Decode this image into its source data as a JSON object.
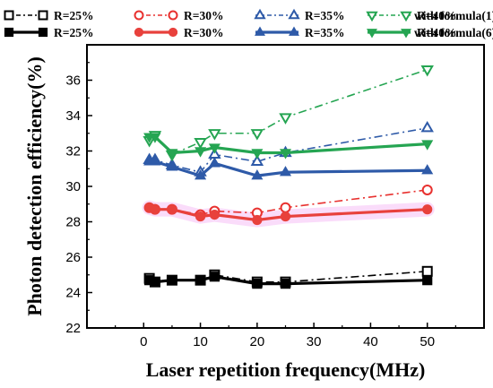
{
  "chart_data": {
    "type": "line",
    "xlabel": "Laser repetition frequency(MHz)",
    "ylabel": "Photon detection efficiency(%)",
    "xlim": [
      -10,
      60
    ],
    "ylim": [
      22,
      38
    ],
    "xticks": [
      0,
      10,
      20,
      30,
      40,
      50
    ],
    "yticks": [
      22,
      24,
      26,
      28,
      30,
      32,
      34,
      36
    ],
    "legend_position": "top",
    "x": [
      1,
      2,
      5,
      10,
      12.5,
      20,
      25,
      50
    ],
    "series": [
      {
        "name": "R=25%",
        "group": "with formula(1)",
        "marker": "square",
        "filled": false,
        "dash": "dashdot",
        "color": "#000000",
        "values": [
          24.8,
          24.6,
          24.7,
          24.7,
          25.0,
          24.6,
          24.6,
          25.2
        ]
      },
      {
        "name": "R=30%",
        "group": "with formula(1)",
        "marker": "circle",
        "filled": false,
        "dash": "dashdot",
        "color": "#e8312f",
        "values": [
          28.8,
          28.7,
          28.7,
          28.4,
          28.6,
          28.5,
          28.8,
          29.8
        ]
      },
      {
        "name": "R=35%",
        "group": "with formula(1)",
        "marker": "triangle-up",
        "filled": false,
        "dash": "dashdot",
        "color": "#2e5aa8",
        "values": [
          31.5,
          31.5,
          31.2,
          30.8,
          31.8,
          31.4,
          31.9,
          33.3
        ]
      },
      {
        "name": "R=40%",
        "group": "with formula(1)",
        "marker": "triangle-down",
        "filled": false,
        "dash": "dashdot",
        "color": "#25a552",
        "values": [
          32.6,
          32.9,
          31.8,
          32.5,
          33.0,
          33.0,
          33.9,
          36.6
        ]
      },
      {
        "name": "R=25%",
        "group": "with formula(6)",
        "marker": "square",
        "filled": true,
        "dash": "solid",
        "color": "#000000",
        "values": [
          24.7,
          24.6,
          24.7,
          24.7,
          24.9,
          24.5,
          24.5,
          24.7
        ]
      },
      {
        "name": "R=30%",
        "group": "with formula(6)",
        "marker": "circle",
        "filled": true,
        "dash": "solid",
        "color": "#e8413c",
        "values": [
          28.8,
          28.7,
          28.7,
          28.3,
          28.4,
          28.1,
          28.3,
          28.7
        ]
      },
      {
        "name": "R=35%",
        "group": "with formula(6)",
        "marker": "triangle-up",
        "filled": true,
        "dash": "solid",
        "color": "#2e5aa8",
        "values": [
          31.4,
          31.4,
          31.1,
          30.6,
          31.3,
          30.6,
          30.8,
          30.9
        ]
      },
      {
        "name": "R=40%",
        "group": "with formula(6)",
        "marker": "triangle-down",
        "filled": true,
        "dash": "solid",
        "color": "#25a552",
        "values": [
          32.8,
          32.8,
          31.9,
          32.0,
          32.2,
          31.9,
          31.9,
          32.4
        ]
      }
    ],
    "legend_rows": [
      {
        "items": [
          "R=25%",
          "R=30%",
          "R=35%",
          "R=40%"
        ],
        "caption": "with formula(1)"
      },
      {
        "items": [
          "R=25%",
          "R=30%",
          "R=35%",
          "R=40%"
        ],
        "caption": "with formula(6)"
      }
    ],
    "highlight_band": {
      "color": "#ee82ee",
      "note": "faint shading around R=30% series"
    }
  }
}
